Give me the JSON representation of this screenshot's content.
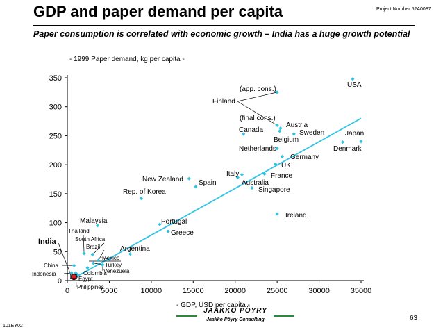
{
  "header": {
    "title": "GDP and paper demand per capita",
    "project_number": "Project Number 52A0087",
    "subtitle": "Paper consumption is correlated with economic growth – India has a huge growth potential"
  },
  "footer": {
    "page_number": "63",
    "doc_id": "101EY02",
    "logo_text": "JAAKKO PÖYRY",
    "logo_subtext": "Jaakko Pöyry Consulting"
  },
  "chart_data": {
    "type": "scatter",
    "ylabel": "- 1999 Paper demand, kg per capita -",
    "xlabel": "- GDP, USD per capita -",
    "xlim": [
      0,
      35000
    ],
    "ylim": [
      0,
      350
    ],
    "x_ticks": [
      0,
      5000,
      10000,
      15000,
      20000,
      25000,
      30000,
      35000
    ],
    "y_ticks": [
      0,
      50,
      100,
      150,
      200,
      250,
      300,
      350
    ],
    "grid": false,
    "colors": {
      "points": "#2fc4e6",
      "trend": "#2fc4e6",
      "india": "#cc2222"
    },
    "trendline": {
      "x": [
        500,
        35000
      ],
      "y": [
        2,
        280
      ]
    },
    "annotations": [
      "(app. cons.)",
      "(final cons.)"
    ],
    "points": [
      {
        "label": "USA",
        "x": 34000,
        "y": 348
      },
      {
        "label": "Japan",
        "x": 35000,
        "y": 240
      },
      {
        "label": "Denmark",
        "x": 32800,
        "y": 239
      },
      {
        "label": "Sweden",
        "x": 27000,
        "y": 253
      },
      {
        "label": "Austria",
        "x": 25400,
        "y": 263
      },
      {
        "label": "Belgium",
        "x": 25300,
        "y": 258
      },
      {
        "label": "Finland",
        "x": 25000,
        "y": 325
      },
      {
        "label": "Finland",
        "x": 25000,
        "y": 268
      },
      {
        "label": "Canada",
        "x": 21000,
        "y": 253
      },
      {
        "label": "Netherlands",
        "x": 25000,
        "y": 228
      },
      {
        "label": "Germany",
        "x": 25600,
        "y": 214
      },
      {
        "label": "UK",
        "x": 24800,
        "y": 201
      },
      {
        "label": "France",
        "x": 23500,
        "y": 184
      },
      {
        "label": "Italy",
        "x": 20800,
        "y": 183
      },
      {
        "label": "Australia",
        "x": 20300,
        "y": 178
      },
      {
        "label": "Singapore",
        "x": 22000,
        "y": 160
      },
      {
        "label": "Ireland",
        "x": 25000,
        "y": 115
      },
      {
        "label": "New Zealand",
        "x": 14500,
        "y": 176
      },
      {
        "label": "Spain",
        "x": 15300,
        "y": 162
      },
      {
        "label": "Rep. of Korea",
        "x": 8800,
        "y": 142
      },
      {
        "label": "Portugal",
        "x": 11000,
        "y": 97
      },
      {
        "label": "Greece",
        "x": 12000,
        "y": 85
      },
      {
        "label": "Malaysia",
        "x": 3600,
        "y": 95
      },
      {
        "label": "Thailand",
        "x": 2000,
        "y": 47
      },
      {
        "label": "South Africa",
        "x": 3000,
        "y": 45
      },
      {
        "label": "Brazil",
        "x": 3700,
        "y": 35
      },
      {
        "label": "Argentina",
        "x": 7500,
        "y": 46
      },
      {
        "label": "Mexico",
        "x": 5000,
        "y": 37
      },
      {
        "label": "Turkey",
        "x": 3100,
        "y": 30
      },
      {
        "label": "Venezuela",
        "x": 4200,
        "y": 27
      },
      {
        "label": "Colombia",
        "x": 2400,
        "y": 22
      },
      {
        "label": "China",
        "x": 800,
        "y": 26
      },
      {
        "label": "Indonesia",
        "x": 500,
        "y": 13
      },
      {
        "label": "Egypt",
        "x": 1200,
        "y": 10
      },
      {
        "label": "Philippines",
        "x": 1000,
        "y": 13
      },
      {
        "label": "India",
        "x": 450,
        "y": 4
      }
    ]
  }
}
